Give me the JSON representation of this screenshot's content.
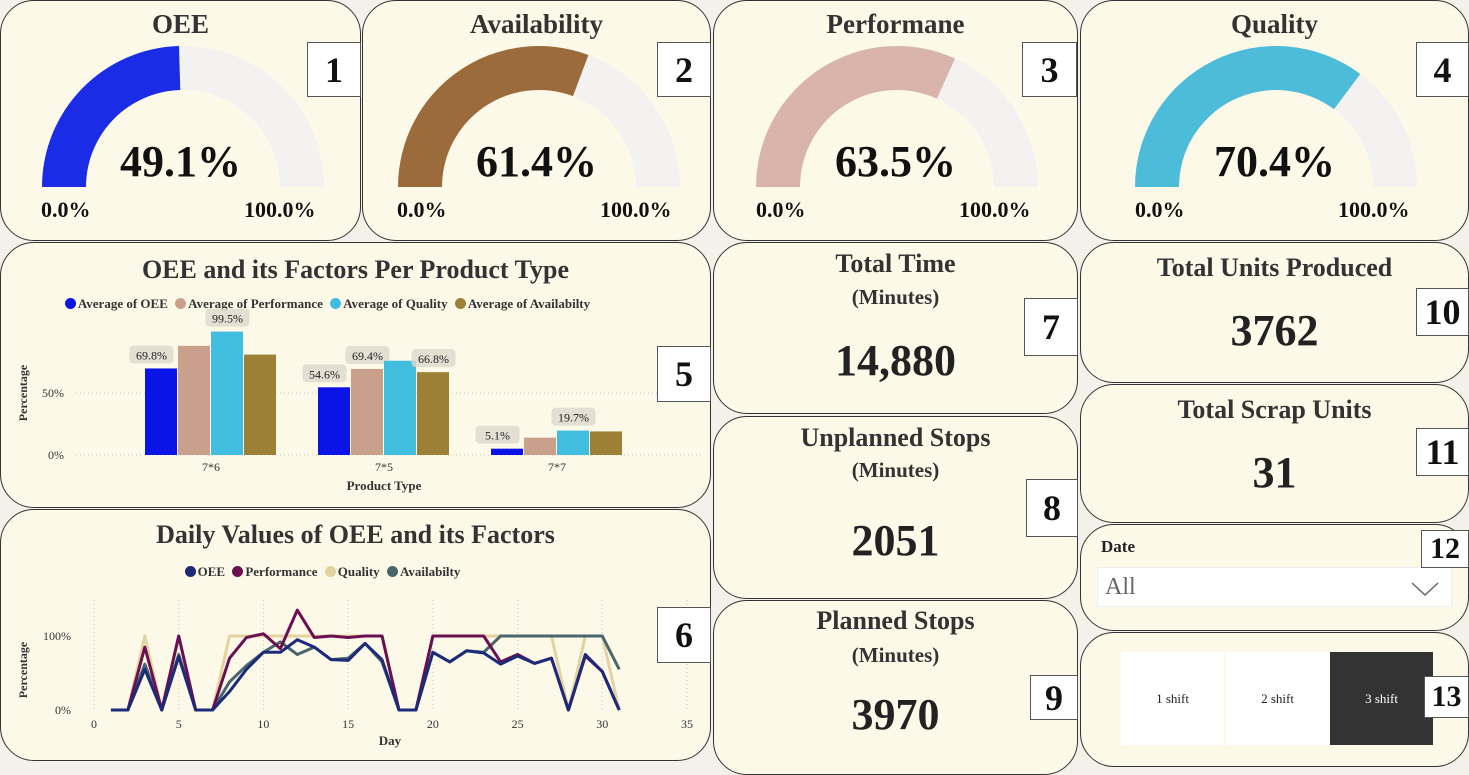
{
  "gauges": [
    {
      "title": "OEE",
      "value": 49.1,
      "label": "49.1%",
      "min": "0.0%",
      "max": "100.0%",
      "color": "#1a2ce6",
      "badge": "1"
    },
    {
      "title": "Availability",
      "value": 61.4,
      "label": "61.4%",
      "min": "0.0%",
      "max": "100.0%",
      "color": "#9b6b3b",
      "badge": "2"
    },
    {
      "title": "Performane",
      "value": 63.5,
      "label": "63.5%",
      "min": "0.0%",
      "max": "100.0%",
      "color": "#d9b4aa",
      "badge": "3"
    },
    {
      "title": "Quality",
      "value": 70.4,
      "label": "70.4%",
      "min": "0.0%",
      "max": "100.0%",
      "color": "#4dbcd9",
      "badge": "4"
    }
  ],
  "gauge_track_color": "#f3f2f1",
  "cards": {
    "total_time": {
      "title": "Total Time",
      "sub": "(Minutes)",
      "value": "14,880",
      "badge": "7"
    },
    "unplanned": {
      "title": "Unplanned Stops",
      "sub": "(Minutes)",
      "value": "2051",
      "badge": "8"
    },
    "planned": {
      "title": "Planned Stops",
      "sub": "(Minutes)",
      "value": "3970",
      "badge": "9"
    },
    "units": {
      "title": "Total Units Produced",
      "value": "3762",
      "badge": "10"
    },
    "scrap": {
      "title": "Total Scrap Units",
      "value": "31",
      "badge": "11"
    }
  },
  "date_filter": {
    "label": "Date",
    "value": "All",
    "badge": "12"
  },
  "shift_filter": {
    "options": [
      "1 shift",
      "2 shift",
      "3 shift"
    ],
    "selected": "3 shift",
    "badge": "13"
  },
  "chart_data": [
    {
      "type": "bar",
      "title": "OEE and its Factors Per Product Type",
      "badge": "5",
      "xlabel": "Product Type",
      "ylabel": "Percentage",
      "ylim": [
        0,
        100
      ],
      "yticks": [
        "0%",
        "50%"
      ],
      "legend_position": "top",
      "categories": [
        "7*6",
        "7*5",
        "7*7"
      ],
      "series": [
        {
          "name": "Average of OEE",
          "color": "#0a14e6",
          "values": [
            69.8,
            54.6,
            5.1
          ],
          "labels": [
            "69.8%",
            "54.6%",
            "5.1%"
          ]
        },
        {
          "name": "Average of Performance",
          "color": "#c9a08c",
          "values": [
            88,
            69.4,
            14
          ],
          "labels": [
            "",
            "69.4%",
            ""
          ]
        },
        {
          "name": "Average of Quality",
          "color": "#41bde0",
          "values": [
            99.5,
            76,
            19.7
          ],
          "labels": [
            "99.5%",
            "",
            "19.7%"
          ]
        },
        {
          "name": "Average of Availabilty",
          "color": "#9c8035",
          "values": [
            81,
            66.8,
            19
          ],
          "labels": [
            "",
            "66.8%",
            ""
          ]
        }
      ]
    },
    {
      "type": "line",
      "title": "Daily Values of OEE and its Factors",
      "badge": "6",
      "xlabel": "Day",
      "ylabel": "Percentage",
      "xlim": [
        0,
        35
      ],
      "xticks": [
        "0",
        "5",
        "10",
        "15",
        "20",
        "25",
        "30",
        "35"
      ],
      "yticks": [
        "0%",
        "100%"
      ],
      "legend_position": "top",
      "x": [
        1,
        2,
        3,
        4,
        5,
        6,
        7,
        8,
        9,
        10,
        11,
        12,
        13,
        14,
        15,
        16,
        17,
        18,
        19,
        20,
        21,
        22,
        23,
        24,
        25,
        26,
        27,
        28,
        29,
        30,
        31
      ],
      "series": [
        {
          "name": "OEE",
          "color": "#1c2a7a",
          "values": [
            0,
            0,
            55,
            0,
            72,
            0,
            0,
            25,
            55,
            78,
            78,
            95,
            85,
            68,
            67,
            90,
            68,
            0,
            0,
            78,
            65,
            80,
            77,
            62,
            73,
            63,
            70,
            0,
            75,
            52,
            0
          ]
        },
        {
          "name": "Performance",
          "color": "#6a1050",
          "values": [
            0,
            0,
            85,
            0,
            100,
            0,
            0,
            70,
            98,
            103,
            83,
            135,
            98,
            100,
            98,
            100,
            100,
            0,
            0,
            100,
            100,
            100,
            100,
            65,
            75,
            63,
            70,
            0,
            73,
            52,
            0
          ]
        },
        {
          "name": "Quality",
          "color": "#e3d3a0",
          "values": [
            0,
            0,
            100,
            0,
            100,
            0,
            0,
            100,
            100,
            100,
            100,
            100,
            100,
            100,
            100,
            100,
            100,
            0,
            0,
            100,
            100,
            100,
            100,
            100,
            100,
            100,
            100,
            0,
            100,
            100,
            0
          ]
        },
        {
          "name": "Availabilty",
          "color": "#48666c",
          "values": [
            0,
            0,
            62,
            0,
            75,
            0,
            0,
            38,
            60,
            78,
            92,
            75,
            85,
            68,
            70,
            90,
            65,
            0,
            0,
            78,
            65,
            80,
            78,
            100,
            100,
            100,
            100,
            100,
            100,
            100,
            55
          ]
        }
      ]
    }
  ]
}
